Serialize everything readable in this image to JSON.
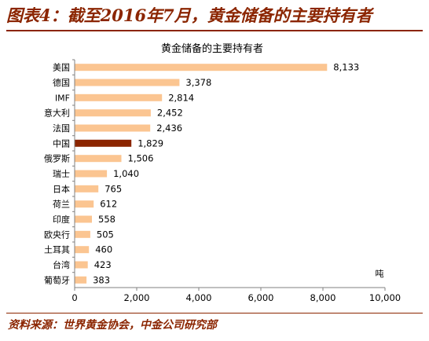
{
  "figure": {
    "title": "图表4：截至2016年7月，黄金储备的主要持有者",
    "source": "资料来源：世界黄金协会，中金公司研究部"
  },
  "colors": {
    "accent": "#8B2500",
    "bar": "#FBC591",
    "highlight": "#8B2500",
    "axis": "#808080"
  },
  "chart_data": {
    "type": "bar",
    "orientation": "horizontal",
    "title": "黄金储备的主要持有者",
    "unit_label": "吨",
    "categories": [
      "美国",
      "德国",
      "IMF",
      "意大利",
      "法国",
      "中国",
      "俄罗斯",
      "瑞士",
      "日本",
      "荷兰",
      "印度",
      "欧央行",
      "土耳其",
      "台湾",
      "葡萄牙"
    ],
    "values": [
      8133,
      3378,
      2814,
      2452,
      2436,
      1829,
      1506,
      1040,
      765,
      612,
      558,
      505,
      460,
      423,
      383
    ],
    "value_labels": [
      "8,133",
      "3,378",
      "2,814",
      "2,452",
      "2,436",
      "1,829",
      "1,506",
      "1,040",
      "765",
      "612",
      "558",
      "505",
      "460",
      "423",
      "383"
    ],
    "highlight_category": "中国",
    "xlim": [
      0,
      10000
    ],
    "xticks": [
      0,
      2000,
      4000,
      6000,
      8000,
      10000
    ],
    "xtick_labels": [
      "0",
      "2,000",
      "4,000",
      "6,000",
      "8,000",
      "10,000"
    ],
    "grid": false,
    "legend": "none"
  }
}
